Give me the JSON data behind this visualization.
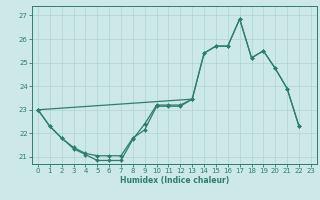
{
  "xlabel": "Humidex (Indice chaleur)",
  "xlim": [
    -0.5,
    23.5
  ],
  "ylim": [
    20.7,
    27.4
  ],
  "yticks": [
    21,
    22,
    23,
    24,
    25,
    26,
    27
  ],
  "xticks": [
    0,
    1,
    2,
    3,
    4,
    5,
    6,
    7,
    8,
    9,
    10,
    11,
    12,
    13,
    14,
    15,
    16,
    17,
    18,
    19,
    20,
    21,
    22,
    23
  ],
  "background_color": "#cce9e7",
  "grid_color": "#aed4d2",
  "line_color": "#2e7d6e",
  "curve1_x": [
    0,
    1,
    2,
    3,
    4,
    5,
    6,
    7,
    8,
    9,
    10,
    11,
    12,
    13,
    14,
    15,
    16,
    17,
    18,
    19,
    20,
    21,
    22
  ],
  "curve1_y": [
    23.0,
    22.3,
    21.8,
    21.35,
    21.1,
    20.85,
    20.85,
    20.85,
    21.75,
    22.4,
    23.2,
    23.2,
    23.2,
    23.45,
    25.4,
    25.7,
    25.7,
    26.85,
    25.2,
    25.5,
    24.75,
    23.9,
    22.3
  ],
  "curve2_x": [
    0,
    1,
    2,
    3,
    4,
    5,
    6,
    7,
    8,
    9,
    10,
    11,
    12,
    13
  ],
  "curve2_y": [
    23.0,
    22.3,
    21.8,
    21.4,
    21.15,
    21.05,
    21.05,
    21.05,
    21.8,
    22.15,
    23.15,
    23.15,
    23.15,
    23.45
  ],
  "curve3_x": [
    0,
    13,
    14,
    15,
    16,
    17,
    18,
    19,
    20,
    21,
    22
  ],
  "curve3_y": [
    23.0,
    23.45,
    25.4,
    25.7,
    25.7,
    26.85,
    25.2,
    25.5,
    24.75,
    23.9,
    22.3
  ]
}
